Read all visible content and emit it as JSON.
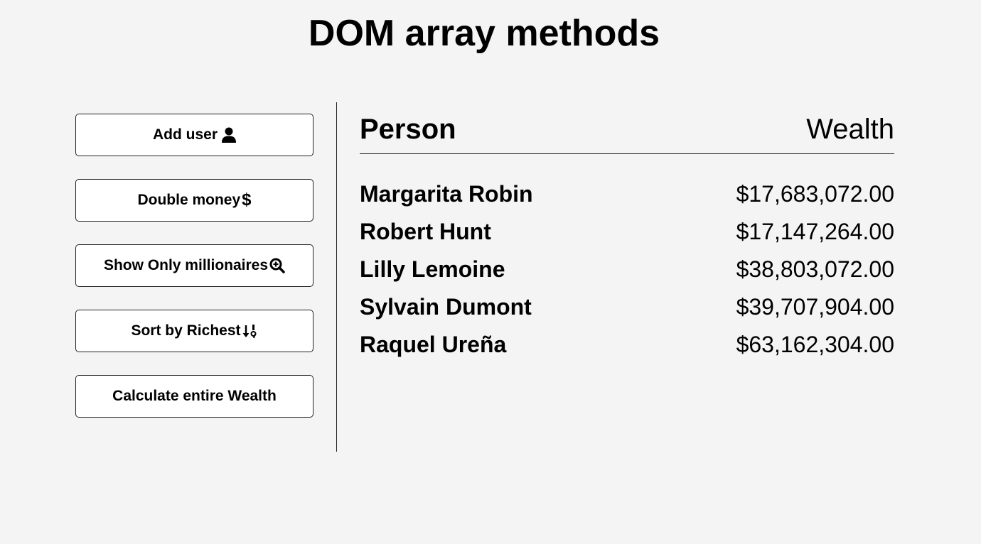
{
  "page": {
    "title": "DOM array methods"
  },
  "buttons": [
    {
      "label": "Add user",
      "icon": "user-icon"
    },
    {
      "label": "Double money",
      "icon": "dollar-icon"
    },
    {
      "label": "Show Only millionaires",
      "icon": "search-plus-icon"
    },
    {
      "label": "Sort by Richest",
      "icon": "sort-numeric-down-icon"
    },
    {
      "label": "Calculate entire Wealth",
      "icon": ""
    }
  ],
  "table": {
    "header": {
      "person": "Person",
      "wealth": "Wealth"
    },
    "rows": [
      {
        "name": "Margarita Robin",
        "money": "$17,683,072.00"
      },
      {
        "name": "Robert Hunt",
        "money": "$17,147,264.00"
      },
      {
        "name": "Lilly Lemoine",
        "money": "$38,803,072.00"
      },
      {
        "name": "Sylvain Dumont",
        "money": "$39,707,904.00"
      },
      {
        "name": "Raquel Ureña",
        "money": "$63,162,304.00"
      }
    ]
  }
}
